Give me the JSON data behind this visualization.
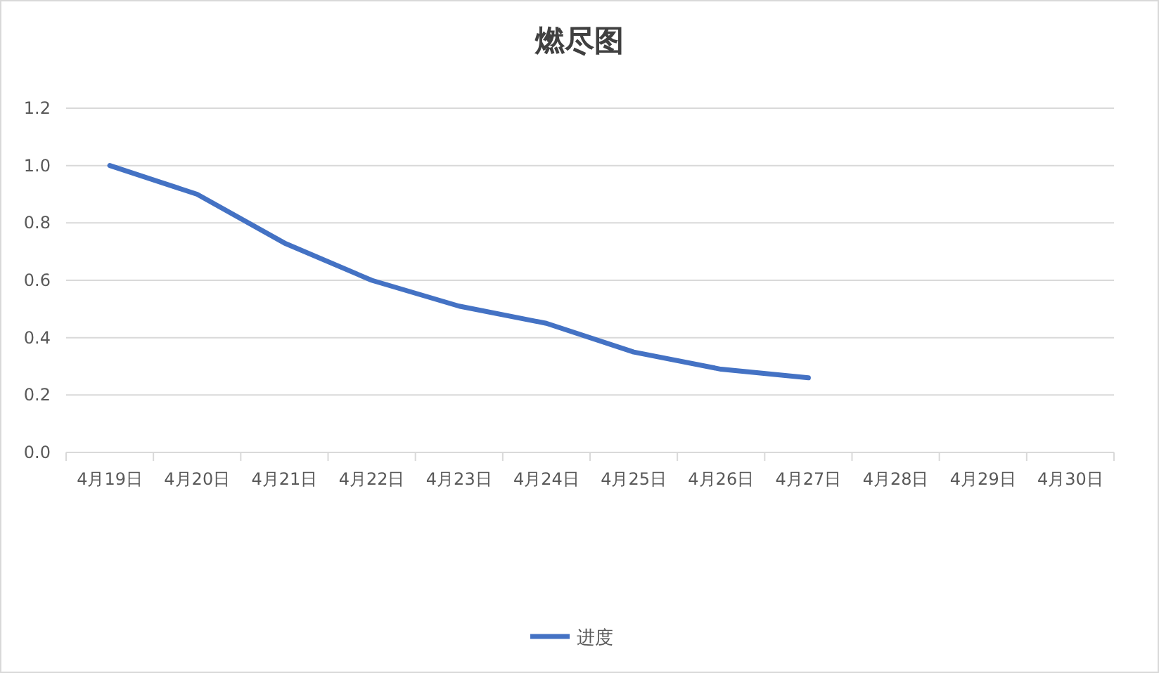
{
  "chart_data": {
    "type": "line",
    "title": "燃尽图",
    "categories": [
      "4月19日",
      "4月20日",
      "4月21日",
      "4月22日",
      "4月23日",
      "4月24日",
      "4月25日",
      "4月26日",
      "4月27日",
      "4月28日",
      "4月29日",
      "4月30日"
    ],
    "series": [
      {
        "name": "进度",
        "color": "#4472c4",
        "values": [
          1.0,
          0.9,
          0.73,
          0.6,
          0.51,
          0.45,
          0.35,
          0.29,
          0.26,
          null,
          null,
          null
        ]
      }
    ],
    "ylim": [
      0,
      1.2
    ],
    "yticks": [
      {
        "value": 0,
        "label": "0.0"
      },
      0.2,
      0.4,
      0.6,
      0.8,
      {
        "value": 1,
        "label": "1.0"
      },
      1.2
    ],
    "grid": "y",
    "legend": "bottom"
  }
}
